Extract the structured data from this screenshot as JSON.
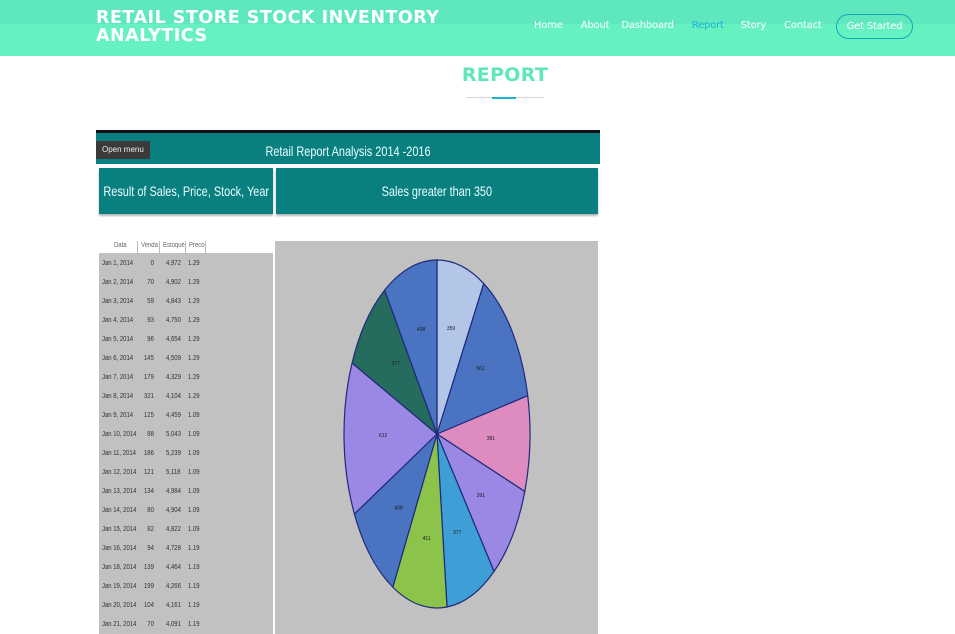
{
  "header": {
    "brand": "RETAIL STORE STOCK INVENTORY ANALYTICS",
    "nav": [
      "Home",
      "About",
      "Dashboard",
      "Report",
      "Story",
      "Contact"
    ],
    "active_nav": "Report",
    "cta": "Get Started"
  },
  "page": {
    "title": "REPORT"
  },
  "report": {
    "banner_title": "Retail Report Analysis 2014 -2016",
    "open_menu": "Open menu",
    "left_panel_title": "Result of Sales, Price, Stock, Year",
    "right_panel_title": "Sales greater than 350",
    "table": {
      "columns": [
        "Data",
        "Venda",
        "Estoque",
        "Preco"
      ],
      "rows": [
        [
          "Jan 1, 2014",
          "0",
          "4,972",
          "1.29"
        ],
        [
          "Jan 2, 2014",
          "70",
          "4,902",
          "1.29"
        ],
        [
          "Jan 3, 2014",
          "59",
          "4,843",
          "1.29"
        ],
        [
          "Jan 4, 2014",
          "93",
          "4,750",
          "1.29"
        ],
        [
          "Jan 5, 2014",
          "96",
          "4,654",
          "1.29"
        ],
        [
          "Jan 6, 2014",
          "145",
          "4,509",
          "1.29"
        ],
        [
          "Jan 7, 2014",
          "179",
          "4,329",
          "1.29"
        ],
        [
          "Jan 8, 2014",
          "321",
          "4,104",
          "1.29"
        ],
        [
          "Jan 9, 2014",
          "125",
          "4,459",
          "1.09"
        ],
        [
          "Jan 10, 2014",
          "88",
          "5,043",
          "1.09"
        ],
        [
          "Jan 11, 2014",
          "186",
          "5,239",
          "1.09"
        ],
        [
          "Jan 12, 2014",
          "121",
          "5,118",
          "1.09"
        ],
        [
          "Jan 13, 2014",
          "134",
          "4,984",
          "1.09"
        ],
        [
          "Jan 14, 2014",
          "80",
          "4,904",
          "1.09"
        ],
        [
          "Jan 15, 2014",
          "82",
          "4,822",
          "1.09"
        ],
        [
          "Jan 16, 2014",
          "94",
          "4,728",
          "1.19"
        ],
        [
          "Jan 18, 2014",
          "139",
          "4,464",
          "1.19"
        ],
        [
          "Jan 19, 2014",
          "199",
          "4,266",
          "1.19"
        ],
        [
          "Jan 20, 2014",
          "104",
          "4,161",
          "1.19"
        ],
        [
          "Jan 21, 2014",
          "70",
          "4,091",
          "1.19"
        ]
      ]
    },
    "chart_data": {
      "type": "pie",
      "title": "Sales greater than 350",
      "values": [
        359,
        561,
        381,
        391,
        377,
        411,
        408,
        612,
        377,
        408
      ],
      "labels": [
        "359",
        "561",
        "381",
        "391",
        "377",
        "411",
        "408",
        "612",
        "377",
        "408"
      ],
      "colors": [
        "#b3c6e8",
        "#4a74c2",
        "#de8cbf",
        "#9b88e4",
        "#3e9fd6",
        "#8cc34a",
        "#4a74c2",
        "#9b88e4",
        "#256b5e",
        "#4a74c2"
      ]
    }
  }
}
